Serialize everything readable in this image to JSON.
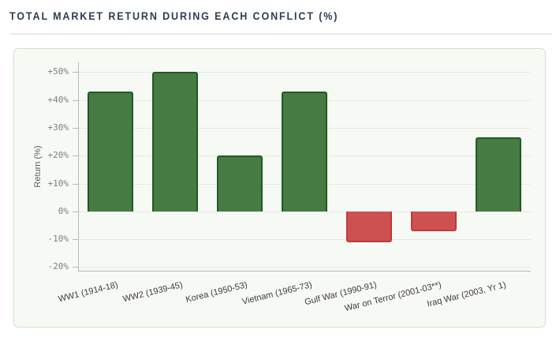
{
  "title": "TOTAL MARKET RETURN DURING EACH CONFLICT (%)",
  "chart_data": {
    "type": "bar",
    "title": "TOTAL MARKET RETURN DURING EACH CONFLICT (%)",
    "categories": [
      "WW1 (1914-18)",
      "WW2 (1939-45)",
      "Korea (1950-53)",
      "Vietnam (1965-73)",
      "Gulf War (1990-91)",
      "War on Terror (2001-03**)",
      "Iraq War (2003, Yr 1)"
    ],
    "values": [
      43,
      50,
      20,
      43,
      -11,
      -7,
      26.5
    ],
    "xlabel": "",
    "ylabel": "Return (%)",
    "ylim": [
      -21.3,
      53.5
    ],
    "yticks": [
      {
        "label": "+50%",
        "value": 50
      },
      {
        "label": "+40%",
        "value": 40
      },
      {
        "label": "+30%",
        "value": 30
      },
      {
        "label": "+20%",
        "value": 20
      },
      {
        "label": "+10%",
        "value": 10
      },
      {
        "label": "0%",
        "value": 0
      },
      {
        "label": "-10%",
        "value": -10
      },
      {
        "label": "-20%",
        "value": -20
      }
    ],
    "grid": true,
    "legend": "none",
    "colors": {
      "positive_fill": "#467b43",
      "positive_border": "#1c5e20",
      "negative_fill": "#cd5151",
      "negative_border": "#bc3c3c",
      "panel_bg": "#f7f9f5",
      "panel_border": "#cfe3cb",
      "title_text": "#2e3d4f",
      "divider": "#e3efe1"
    }
  }
}
